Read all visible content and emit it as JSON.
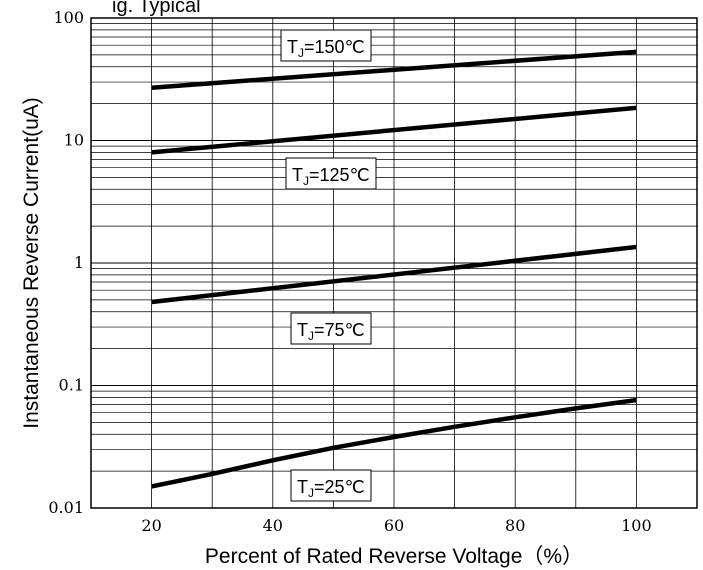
{
  "chart_data": {
    "type": "line",
    "title": "ig. Typical",
    "xlabel": "Percent of Rated Reverse Voltage（%）",
    "ylabel": "Instantaneous Reverse Current(uA)",
    "xlim": [
      10,
      110
    ],
    "ylim": [
      0.01,
      100
    ],
    "yscale": "log",
    "grid": true,
    "x_ticks": [
      "20",
      "40",
      "60",
      "80",
      "100"
    ],
    "y_ticks": [
      "0.01",
      "0.1",
      "1",
      "10",
      "100"
    ],
    "series": [
      {
        "name": "TJ=150℃",
        "label_main": "T",
        "label_sub": "J",
        "label_tail": "=150℃",
        "x": [
          20,
          100
        ],
        "y": [
          27,
          53
        ]
      },
      {
        "name": "TJ=125℃",
        "label_main": "T",
        "label_sub": "J",
        "label_tail": "=125℃",
        "x": [
          20,
          100
        ],
        "y": [
          8,
          18.5
        ]
      },
      {
        "name": "TJ=75℃",
        "label_main": "T",
        "label_sub": "J",
        "label_tail": "=75℃",
        "x": [
          20,
          100
        ],
        "y": [
          0.48,
          1.35
        ]
      },
      {
        "name": "TJ=25℃",
        "label_main": "T",
        "label_sub": "J",
        "label_tail": "=25℃",
        "x": [
          20,
          30,
          40,
          50,
          60,
          70,
          80,
          90,
          100
        ],
        "y": [
          0.015,
          0.019,
          0.0245,
          0.031,
          0.038,
          0.046,
          0.055,
          0.065,
          0.076
        ]
      }
    ]
  }
}
